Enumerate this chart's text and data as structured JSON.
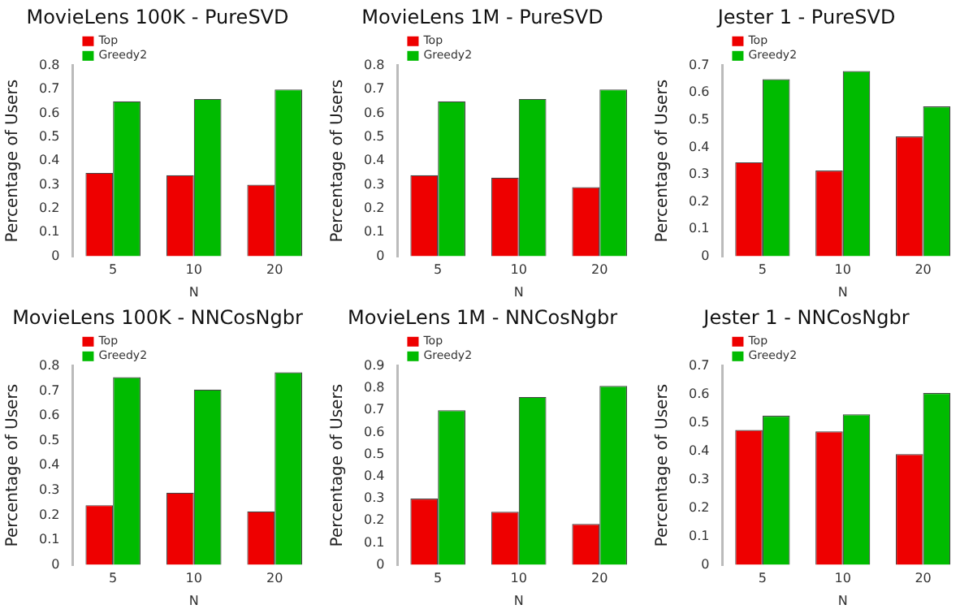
{
  "chart_data": [
    {
      "type": "bar",
      "title": "MovieLens 100K - PureSVD",
      "xlabel": "N",
      "ylabel": "Percentage of Users",
      "categories": [
        "5",
        "10",
        "20"
      ],
      "series": [
        {
          "name": "Top",
          "color": "#ee0000",
          "values": [
            0.35,
            0.34,
            0.3
          ]
        },
        {
          "name": "Greedy2",
          "color": "#00bb00",
          "values": [
            0.65,
            0.66,
            0.7
          ]
        }
      ],
      "ylim": [
        0,
        0.8
      ],
      "yticks": [
        0,
        0.1,
        0.2,
        0.3,
        0.4,
        0.5,
        0.6,
        0.7,
        0.8
      ],
      "legend": "top left",
      "grid": false
    },
    {
      "type": "bar",
      "title": "MovieLens 1M - PureSVD",
      "xlabel": "N",
      "ylabel": "Percentage of Users",
      "categories": [
        "5",
        "10",
        "20"
      ],
      "series": [
        {
          "name": "Top",
          "color": "#ee0000",
          "values": [
            0.34,
            0.33,
            0.29
          ]
        },
        {
          "name": "Greedy2",
          "color": "#00bb00",
          "values": [
            0.65,
            0.66,
            0.7
          ]
        }
      ],
      "ylim": [
        0,
        0.8
      ],
      "yticks": [
        0,
        0.1,
        0.2,
        0.3,
        0.4,
        0.5,
        0.6,
        0.7,
        0.8
      ],
      "legend": "top left",
      "grid": false
    },
    {
      "type": "bar",
      "title": "Jester 1 - PureSVD",
      "xlabel": "N",
      "ylabel": "Percentage of Users",
      "categories": [
        "5",
        "10",
        "20"
      ],
      "series": [
        {
          "name": "Top",
          "color": "#ee0000",
          "values": [
            0.345,
            0.315,
            0.44
          ]
        },
        {
          "name": "Greedy2",
          "color": "#00bb00",
          "values": [
            0.65,
            0.68,
            0.55
          ]
        }
      ],
      "ylim": [
        0,
        0.7
      ],
      "yticks": [
        0,
        0.1,
        0.2,
        0.3,
        0.4,
        0.5,
        0.6,
        0.7
      ],
      "legend": "top left",
      "grid": false
    },
    {
      "type": "bar",
      "title": "MovieLens 100K - NNCosNgbr",
      "xlabel": "N",
      "ylabel": "Percentage of Users",
      "categories": [
        "5",
        "10",
        "20"
      ],
      "series": [
        {
          "name": "Top",
          "color": "#ee0000",
          "values": [
            0.24,
            0.29,
            0.215
          ]
        },
        {
          "name": "Greedy2",
          "color": "#00bb00",
          "values": [
            0.755,
            0.705,
            0.775
          ]
        }
      ],
      "ylim": [
        0,
        0.8
      ],
      "yticks": [
        0,
        0.1,
        0.2,
        0.3,
        0.4,
        0.5,
        0.6,
        0.7,
        0.8
      ],
      "legend": "top left",
      "grid": false
    },
    {
      "type": "bar",
      "title": "MovieLens 1M - NNCosNgbr",
      "xlabel": "N",
      "ylabel": "Percentage of Users",
      "categories": [
        "5",
        "10",
        "20"
      ],
      "series": [
        {
          "name": "Top",
          "color": "#ee0000",
          "values": [
            0.3,
            0.24,
            0.185
          ]
        },
        {
          "name": "Greedy2",
          "color": "#00bb00",
          "values": [
            0.7,
            0.76,
            0.81
          ]
        }
      ],
      "ylim": [
        0,
        0.9
      ],
      "yticks": [
        0,
        0.1,
        0.2,
        0.3,
        0.4,
        0.5,
        0.6,
        0.7,
        0.8,
        0.9
      ],
      "legend": "top left",
      "grid": false
    },
    {
      "type": "bar",
      "title": "Jester 1 - NNCosNgbr",
      "xlabel": "N",
      "ylabel": "Percentage of Users",
      "categories": [
        "5",
        "10",
        "20"
      ],
      "series": [
        {
          "name": "Top",
          "color": "#ee0000",
          "values": [
            0.475,
            0.47,
            0.39
          ]
        },
        {
          "name": "Greedy2",
          "color": "#00bb00",
          "values": [
            0.525,
            0.53,
            0.605
          ]
        }
      ],
      "ylim": [
        0,
        0.7
      ],
      "yticks": [
        0,
        0.1,
        0.2,
        0.3,
        0.4,
        0.5,
        0.6,
        0.7
      ],
      "legend": "top left",
      "grid": false
    }
  ]
}
